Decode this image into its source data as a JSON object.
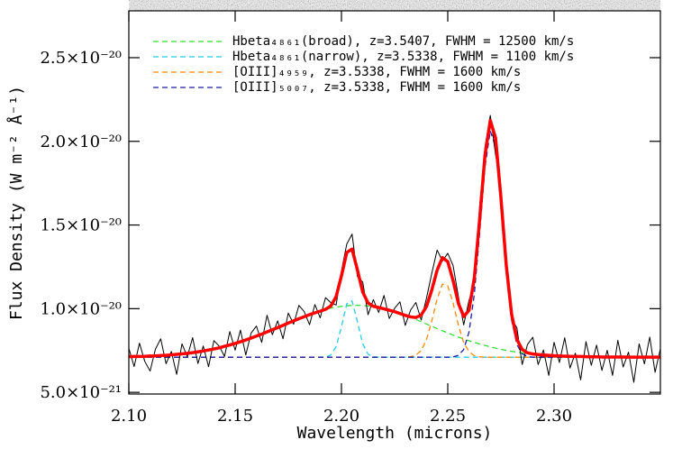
{
  "chart_data": {
    "type": "line",
    "xlabel": "Wavelength (microns)",
    "ylabel": "Flux Density (W m⁻² Å⁻¹)",
    "xlim": [
      2.1,
      2.35
    ],
    "ylim": [
      4.9e-21,
      2.78e-20
    ],
    "xticks": [
      {
        "value": 2.1,
        "label": "2.10"
      },
      2.15,
      {
        "value": 2.2,
        "label": "2.20"
      },
      2.25,
      {
        "value": 2.3,
        "label": "2.30"
      }
    ],
    "yticks": [
      {
        "value": 5e-21,
        "label": "5.0×10⁻²¹"
      },
      {
        "value": 1e-20,
        "label": "1.0×10⁻²⁰"
      },
      {
        "value": 1.5e-20,
        "label": "1.5×10⁻²⁰"
      },
      {
        "value": 2e-20,
        "label": "2.0×10⁻²⁰"
      },
      {
        "value": 2.5e-20,
        "label": "2.5×10⁻²⁰"
      }
    ],
    "legend": "upper left",
    "x": [
      2.1,
      2.1025,
      2.105,
      2.1075,
      2.11,
      2.1125,
      2.115,
      2.1175,
      2.12,
      2.1225,
      2.125,
      2.1275,
      2.13,
      2.1325,
      2.135,
      2.1375,
      2.14,
      2.1425,
      2.145,
      2.1475,
      2.15,
      2.1525,
      2.155,
      2.1575,
      2.16,
      2.1625,
      2.165,
      2.1675,
      2.17,
      2.1725,
      2.175,
      2.1775,
      2.18,
      2.1825,
      2.185,
      2.1875,
      2.19,
      2.1925,
      2.195,
      2.1975,
      2.2,
      2.2025,
      2.205,
      2.2075,
      2.21,
      2.2125,
      2.215,
      2.2175,
      2.22,
      2.2225,
      2.225,
      2.2275,
      2.23,
      2.2325,
      2.235,
      2.2375,
      2.24,
      2.2425,
      2.245,
      2.2475,
      2.25,
      2.2525,
      2.255,
      2.2575,
      2.26,
      2.2625,
      2.265,
      2.2675,
      2.27,
      2.2725,
      2.275,
      2.2775,
      2.28,
      2.2825,
      2.285,
      2.2875,
      2.29,
      2.2925,
      2.295,
      2.2975,
      2.3,
      2.3025,
      2.305,
      2.3075,
      2.31,
      2.3125,
      2.315,
      2.3175,
      2.32,
      2.3225,
      2.325,
      2.3275,
      2.33,
      2.3325,
      2.335,
      2.3375,
      2.34,
      2.3425,
      2.345,
      2.3475,
      2.35
    ],
    "series": [
      {
        "color": "#000000",
        "style": "solid",
        "width": 1,
        "values": [
          7.63e-21,
          6.54e-21,
          7.94e-21,
          6.85e-21,
          6.27e-21,
          7.58e-21,
          8.2e-21,
          6.71e-21,
          7.44e-21,
          6.07e-21,
          7.9e-21,
          7.13e-21,
          8.27e-21,
          6.72e-21,
          7.77e-21,
          6.53e-21,
          8.09e-21,
          7.76e-21,
          7.15e-21,
          8.63e-21,
          7.52e-21,
          8.72e-21,
          7.23e-21,
          8.54e-21,
          8.96e-21,
          7.98e-21,
          9.61e-21,
          8.44e-21,
          9.27e-21,
          8.2e-21,
          9.74e-21,
          9.07e-21,
          1.02e-20,
          9.82e-21,
          9.04e-21,
          1.025e-20,
          9.45e-21,
          1.066e-20,
          1.036e-20,
          1.022e-20,
          1.226e-20,
          1.386e-20,
          1.446e-20,
          1.192e-20,
          1.159e-20,
          9.64e-21,
          1.054e-20,
          9.77e-21,
          1.079e-20,
          9.41e-21,
          1.002e-20,
          1.041e-20,
          9e-21,
          9.91e-21,
          1.037e-20,
          9.32e-21,
          1.063e-20,
          1.212e-20,
          1.35e-20,
          1.285e-20,
          1.331e-20,
          1.258e-20,
          1.072e-20,
          9.03e-21,
          1.05e-20,
          1.145e-20,
          1.614e-20,
          1.966e-20,
          2.155e-20,
          1.919e-20,
          1.724e-20,
          1.301e-20,
          9.39e-21,
          8.86e-21,
          6.66e-21,
          7.86e-21,
          8.29e-21,
          6.66e-21,
          7.53e-21,
          6.01e-21,
          7.99e-21,
          6.78e-21,
          8.26e-21,
          6.45e-21,
          7.34e-21,
          5.74e-21,
          8.03e-21,
          6.62e-21,
          7.82e-21,
          6.31e-21,
          7.51e-21,
          6.01e-21,
          8.11e-21,
          6.51e-21,
          7.4e-21,
          5.6e-21,
          7.9e-21,
          6.7e-21,
          8.3e-21,
          6.2e-21,
          7.6e-21
        ]
      },
      {
        "color": "#ff0000",
        "style": "solid",
        "width": 3.5,
        "values": [
          7.13e-21,
          7.14e-21,
          7.14e-21,
          7.15e-21,
          7.17e-21,
          7.18e-21,
          7.2e-21,
          7.21e-21,
          7.24e-21,
          7.27e-21,
          7.3e-21,
          7.33e-21,
          7.37e-21,
          7.42e-21,
          7.47e-21,
          7.53e-21,
          7.59e-21,
          7.66e-21,
          7.75e-21,
          7.83e-21,
          7.92e-21,
          8.02e-21,
          8.13e-21,
          8.24e-21,
          8.36e-21,
          8.48e-21,
          8.61e-21,
          8.74e-21,
          8.87e-21,
          9e-21,
          9.14e-21,
          9.27e-21,
          9.4e-21,
          9.52e-21,
          9.64e-21,
          9.75e-21,
          9.85e-21,
          9.96e-21,
          1.016e-20,
          1.072e-20,
          1.196e-20,
          1.336e-20,
          1.356e-20,
          1.232e-20,
          1.099e-20,
          1.034e-20,
          1.014e-20,
          1.007e-20,
          9.99e-21,
          9.91e-21,
          9.82e-21,
          9.71e-21,
          9.6e-21,
          9.51e-21,
          9.47e-21,
          9.62e-21,
          1.013e-20,
          1.112e-20,
          1.23e-20,
          1.305e-20,
          1.281e-20,
          1.168e-20,
          1.032e-20,
          9.53e-21,
          9.9e-21,
          1.185e-20,
          1.534e-20,
          1.916e-20,
          2.125e-20,
          2.019e-20,
          1.664e-20,
          1.261e-20,
          9.69e-21,
          8.16e-21,
          7.56e-21,
          7.36e-21,
          7.29e-21,
          7.26e-21,
          7.23e-21,
          7.21e-21,
          7.19e-21,
          7.18e-21,
          7.16e-21,
          7.15e-21,
          7.14e-21,
          7.14e-21,
          7.13e-21,
          7.12e-21,
          7.12e-21,
          7.11e-21,
          7.11e-21,
          7.11e-21,
          7.11e-21,
          7.11e-21,
          7.1e-21,
          7.1e-21,
          7.1e-21,
          7.1e-21,
          7.1e-21,
          7.1e-21,
          7.1e-21
        ]
      },
      {
        "name": "Hbeta₄₈₆₁(broad), z=3.5407, FWHM = 12500 km/s",
        "color": "#33dd33",
        "style": "dashed",
        "width": 1.3,
        "values": [
          7.13e-21,
          7.14e-21,
          7.14e-21,
          7.15e-21,
          7.17e-21,
          7.18e-21,
          7.2e-21,
          7.21e-21,
          7.24e-21,
          7.27e-21,
          7.3e-21,
          7.33e-21,
          7.37e-21,
          7.42e-21,
          7.47e-21,
          7.53e-21,
          7.59e-21,
          7.66e-21,
          7.75e-21,
          7.83e-21,
          7.92e-21,
          8.02e-21,
          8.13e-21,
          8.24e-21,
          8.36e-21,
          8.48e-21,
          8.61e-21,
          8.74e-21,
          8.87e-21,
          9e-21,
          9.14e-21,
          9.27e-21,
          9.4e-21,
          9.52e-21,
          9.64e-21,
          9.75e-21,
          9.85e-21,
          9.95e-21,
          1.003e-20,
          1.009e-20,
          1.014e-20,
          1.017e-20,
          1.02e-20,
          1.02e-20,
          1.019e-20,
          1.016e-20,
          1.012e-20,
          1.007e-20,
          9.99e-21,
          9.91e-21,
          9.82e-21,
          9.71e-21,
          9.6e-21,
          9.48e-21,
          9.35e-21,
          9.22e-21,
          9.08e-21,
          8.95e-21,
          8.81e-21,
          8.68e-21,
          8.55e-21,
          8.42e-21,
          8.3e-21,
          8.19e-21,
          8.08e-21,
          7.98e-21,
          7.89e-21,
          7.8e-21,
          7.72e-21,
          7.64e-21,
          7.57e-21,
          7.51e-21,
          7.45e-21,
          7.4e-21,
          7.36e-21,
          7.32e-21,
          7.29e-21,
          7.26e-21,
          7.23e-21,
          7.21e-21,
          7.19e-21,
          7.18e-21,
          7.16e-21,
          7.15e-21,
          7.14e-21,
          7.14e-21,
          7.13e-21,
          7.12e-21,
          7.12e-21,
          7.11e-21,
          7.11e-21,
          7.11e-21,
          7.11e-21,
          7.11e-21,
          7.1e-21,
          7.1e-21,
          7.1e-21,
          7.1e-21,
          7.1e-21,
          7.1e-21,
          7.1e-21
        ]
      },
      {
        "name": "Hbeta₄₈₆₁(narrow), z=3.5338, FWHM = 1100 km/s",
        "color": "#22ccee",
        "style": "dashed",
        "width": 1.3,
        "values": [
          7.1e-21,
          7.1e-21,
          7.1e-21,
          7.1e-21,
          7.1e-21,
          7.1e-21,
          7.1e-21,
          7.1e-21,
          7.1e-21,
          7.1e-21,
          7.1e-21,
          7.1e-21,
          7.1e-21,
          7.1e-21,
          7.1e-21,
          7.1e-21,
          7.1e-21,
          7.1e-21,
          7.1e-21,
          7.1e-21,
          7.1e-21,
          7.1e-21,
          7.1e-21,
          7.1e-21,
          7.1e-21,
          7.1e-21,
          7.1e-21,
          7.1e-21,
          7.1e-21,
          7.1e-21,
          7.1e-21,
          7.1e-21,
          7.1e-21,
          7.1e-21,
          7.1e-21,
          7.1e-21,
          7.1e-21,
          7.11e-21,
          7.23e-21,
          7.73e-21,
          8.92e-21,
          1.029e-20,
          1.046e-20,
          9.22e-21,
          7.9e-21,
          7.28e-21,
          7.12e-21,
          7.1e-21,
          7.1e-21,
          7.1e-21,
          7.1e-21,
          7.1e-21,
          7.1e-21,
          7.1e-21,
          7.1e-21,
          7.1e-21,
          7.1e-21,
          7.1e-21,
          7.1e-21,
          7.1e-21,
          7.1e-21,
          7.1e-21,
          7.1e-21,
          7.1e-21,
          7.1e-21,
          7.1e-21,
          7.1e-21,
          7.1e-21,
          7.1e-21,
          7.1e-21,
          7.1e-21,
          7.1e-21,
          7.1e-21,
          7.1e-21,
          7.1e-21,
          7.1e-21,
          7.1e-21,
          7.1e-21,
          7.1e-21,
          7.1e-21,
          7.1e-21,
          7.1e-21,
          7.1e-21,
          7.1e-21,
          7.1e-21,
          7.1e-21,
          7.1e-21,
          7.1e-21,
          7.1e-21,
          7.1e-21,
          7.1e-21,
          7.1e-21,
          7.1e-21,
          7.1e-21,
          7.1e-21,
          7.1e-21,
          7.1e-21,
          7.1e-21,
          7.1e-21,
          7.1e-21,
          7.1e-21
        ]
      },
      {
        "name": "[OIII]₄₉₅₉, z=3.5338, FWHM = 1600 km/s",
        "color": "#ff8800",
        "style": "dashed",
        "width": 1.3,
        "values": [
          7.1e-21,
          7.1e-21,
          7.1e-21,
          7.1e-21,
          7.1e-21,
          7.1e-21,
          7.1e-21,
          7.1e-21,
          7.1e-21,
          7.1e-21,
          7.1e-21,
          7.1e-21,
          7.1e-21,
          7.1e-21,
          7.1e-21,
          7.1e-21,
          7.1e-21,
          7.1e-21,
          7.1e-21,
          7.1e-21,
          7.1e-21,
          7.1e-21,
          7.1e-21,
          7.1e-21,
          7.1e-21,
          7.1e-21,
          7.1e-21,
          7.1e-21,
          7.1e-21,
          7.1e-21,
          7.1e-21,
          7.1e-21,
          7.1e-21,
          7.1e-21,
          7.1e-21,
          7.1e-21,
          7.1e-21,
          7.1e-21,
          7.1e-21,
          7.1e-21,
          7.1e-21,
          7.1e-21,
          7.1e-21,
          7.1e-21,
          7.1e-21,
          7.1e-21,
          7.1e-21,
          7.1e-21,
          7.1e-21,
          7.1e-21,
          7.1e-21,
          7.1e-21,
          7.1e-21,
          7.13e-21,
          7.22e-21,
          7.5e-21,
          8.15e-21,
          9.27e-21,
          1.059e-20,
          1.147e-20,
          1.136e-20,
          1.034e-20,
          9.01e-21,
          7.98e-21,
          7.42e-21,
          7.19e-21,
          7.12e-21,
          7.1e-21,
          7.1e-21,
          7.1e-21,
          7.1e-21,
          7.1e-21,
          7.1e-21,
          7.1e-21,
          7.1e-21,
          7.1e-21,
          7.1e-21,
          7.1e-21,
          7.1e-21,
          7.1e-21,
          7.1e-21,
          7.1e-21,
          7.1e-21,
          7.1e-21,
          7.1e-21,
          7.1e-21,
          7.1e-21,
          7.1e-21,
          7.1e-21,
          7.1e-21,
          7.1e-21,
          7.1e-21,
          7.1e-21,
          7.1e-21,
          7.1e-21,
          7.1e-21,
          7.1e-21,
          7.1e-21,
          7.1e-21,
          7.1e-21,
          7.1e-21
        ]
      },
      {
        "name": "[OIII]₅₀₀₇, z=3.5338, FWHM = 1600 km/s",
        "color": "#1a1aa8",
        "style": "dashed",
        "width": 1.3,
        "values": [
          7.1e-21,
          7.1e-21,
          7.1e-21,
          7.1e-21,
          7.1e-21,
          7.1e-21,
          7.1e-21,
          7.1e-21,
          7.1e-21,
          7.1e-21,
          7.1e-21,
          7.1e-21,
          7.1e-21,
          7.1e-21,
          7.1e-21,
          7.1e-21,
          7.1e-21,
          7.1e-21,
          7.1e-21,
          7.1e-21,
          7.1e-21,
          7.1e-21,
          7.1e-21,
          7.1e-21,
          7.1e-21,
          7.1e-21,
          7.1e-21,
          7.1e-21,
          7.1e-21,
          7.1e-21,
          7.1e-21,
          7.1e-21,
          7.1e-21,
          7.1e-21,
          7.1e-21,
          7.1e-21,
          7.1e-21,
          7.1e-21,
          7.1e-21,
          7.1e-21,
          7.1e-21,
          7.1e-21,
          7.1e-21,
          7.1e-21,
          7.1e-21,
          7.1e-21,
          7.1e-21,
          7.1e-21,
          7.1e-21,
          7.1e-21,
          7.1e-21,
          7.1e-21,
          7.1e-21,
          7.1e-21,
          7.1e-21,
          7.1e-21,
          7.1e-21,
          7.1e-21,
          7.1e-21,
          7.1e-21,
          7.1e-21,
          7.12e-21,
          7.21e-21,
          7.56e-21,
          8.6e-21,
          1.088e-20,
          1.453e-20,
          1.846e-20,
          2.063e-20,
          1.965e-20,
          1.617e-20,
          1.22e-20,
          9.34e-21,
          7.86e-21,
          7.3e-21,
          7.14e-21,
          7.1e-21,
          7.1e-21,
          7.1e-21,
          7.1e-21,
          7.1e-21,
          7.1e-21,
          7.1e-21,
          7.1e-21,
          7.1e-21,
          7.1e-21,
          7.1e-21,
          7.1e-21,
          7.1e-21,
          7.1e-21,
          7.1e-21,
          7.1e-21,
          7.1e-21,
          7.1e-21,
          7.1e-21,
          7.1e-21,
          7.1e-21,
          7.1e-21,
          7.1e-21,
          7.1e-21,
          7.1e-21
        ]
      }
    ]
  }
}
